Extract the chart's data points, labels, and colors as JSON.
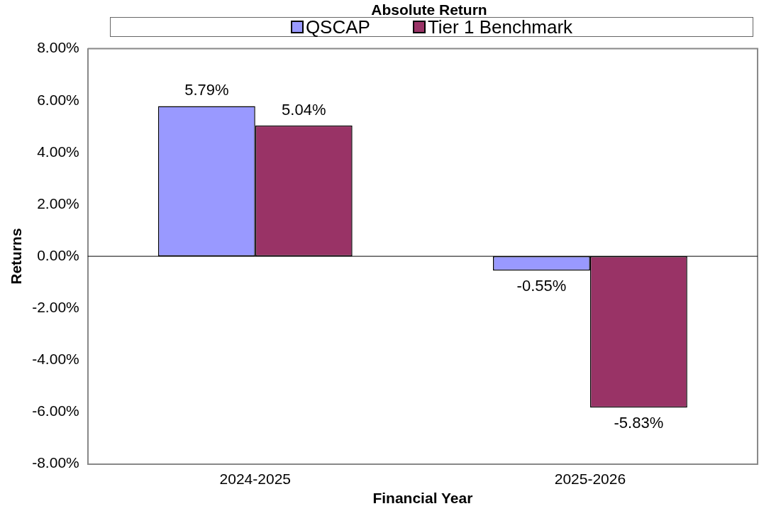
{
  "chart_data": {
    "type": "bar",
    "title": "Absolute Return",
    "xlabel": "Financial Year",
    "ylabel": "Returns",
    "categories": [
      "2024-2025",
      "2025-2026"
    ],
    "series": [
      {
        "name": "QSCAP",
        "color": "#9999ff",
        "values": [
          5.79,
          -0.55
        ],
        "value_labels": [
          "5.79%",
          "-0.55%"
        ]
      },
      {
        "name": "Tier 1 Benchmark",
        "color": "#993366",
        "values": [
          5.04,
          -5.83
        ],
        "value_labels": [
          "5.04%",
          "-5.83%"
        ]
      }
    ],
    "ylim": [
      -8,
      8
    ],
    "yticks": [
      {
        "value": -8,
        "label": "-8.00%"
      },
      {
        "value": -6,
        "label": "-6.00%"
      },
      {
        "value": -4,
        "label": "-4.00%"
      },
      {
        "value": -2,
        "label": "-2.00%"
      },
      {
        "value": 0,
        "label": "0.00%"
      },
      {
        "value": 2,
        "label": "2.00%"
      },
      {
        "value": 4,
        "label": "4.00%"
      },
      {
        "value": 6,
        "label": "6.00%"
      },
      {
        "value": 8,
        "label": "8.00%"
      }
    ],
    "legend": "top"
  }
}
